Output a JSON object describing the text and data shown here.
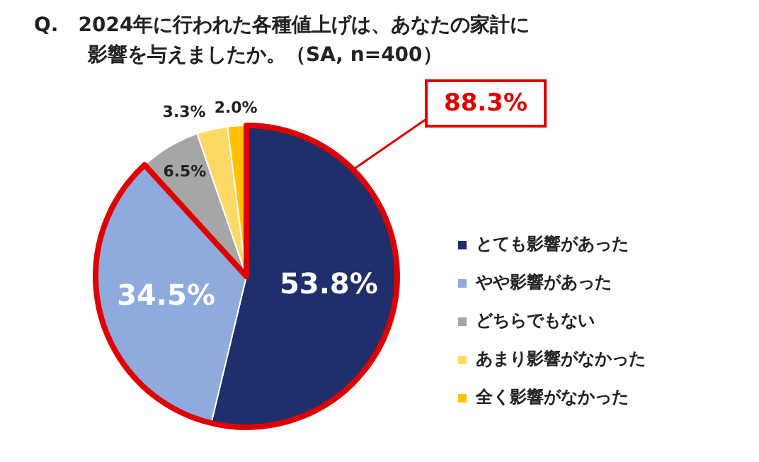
{
  "chart_data": {
    "type": "pie",
    "title": "Q.　2024年に行われた各種値上げは、あなたの家計に影響を与えましたか。（SA, n=400）",
    "categories": [
      "とても影響があった",
      "やや影響があった",
      "どちらでもない",
      "あまり影響がなかった",
      "全く影響がなかった"
    ],
    "values": [
      53.8,
      34.5,
      6.5,
      3.3,
      2.0
    ],
    "colors": [
      "#1f2f6b",
      "#8faadc",
      "#a6a6a6",
      "#ffd966",
      "#ffc000"
    ],
    "value_labels": [
      "53.8%",
      "34.5%",
      "6.5%",
      "3.3%",
      "2.0%"
    ],
    "legend": "right",
    "annotations": [
      "88.3%"
    ]
  }
}
